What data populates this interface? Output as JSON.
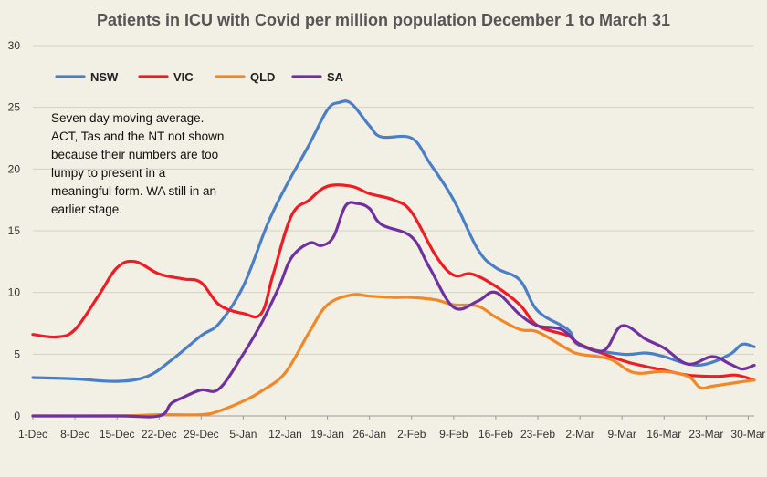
{
  "chart_data": {
    "type": "line",
    "title": "Patients in ICU with Covid per million population December 1  to March 31",
    "xlabel": "",
    "ylabel": "",
    "ylim": [
      0,
      30
    ],
    "yticks": [
      0,
      5,
      10,
      15,
      20,
      25,
      30
    ],
    "grid": "horizontal",
    "legend_position": "top-left",
    "x_start": "1-Dec",
    "x_end": "31-Mar",
    "x_tick_labels": [
      "1-Dec",
      "8-Dec",
      "15-Dec",
      "22-Dec",
      "29-Dec",
      "5-Jan",
      "12-Jan",
      "19-Jan",
      "26-Jan",
      "2-Feb",
      "9-Feb",
      "16-Feb",
      "23-Feb",
      "2-Mar",
      "9-Mar",
      "16-Mar",
      "23-Mar",
      "30-Mar"
    ],
    "annotation": [
      "Seven day moving average.",
      "ACT, Tas and the NT not shown",
      "because their numbers are too",
      "lumpy to present  in a",
      "meaningful form. WA still in an",
      "earlier stage."
    ],
    "series": [
      {
        "name": "NSW",
        "color": "#4a7fc8",
        "points": [
          [
            "1-Dec",
            3.1
          ],
          [
            "8-Dec",
            3.0
          ],
          [
            "15-Dec",
            2.8
          ],
          [
            "20-Dec",
            3.2
          ],
          [
            "24-Dec",
            4.5
          ],
          [
            "29-Dec",
            6.5
          ],
          [
            "1-Jan",
            7.5
          ],
          [
            "5-Jan",
            10.5
          ],
          [
            "9-Jan",
            15.5
          ],
          [
            "12-Jan",
            18.5
          ],
          [
            "16-Jan",
            22.0
          ],
          [
            "19-Jan",
            24.8
          ],
          [
            "21-Jan",
            25.4
          ],
          [
            "23-Jan",
            25.3
          ],
          [
            "26-Jan",
            23.5
          ],
          [
            "28-Jan",
            22.6
          ],
          [
            "2-Feb",
            22.5
          ],
          [
            "5-Feb",
            20.5
          ],
          [
            "9-Feb",
            17.5
          ],
          [
            "13-Feb",
            13.5
          ],
          [
            "16-Feb",
            12.0
          ],
          [
            "20-Feb",
            11.0
          ],
          [
            "23-Feb",
            8.5
          ],
          [
            "28-Feb",
            7.0
          ],
          [
            "2-Mar",
            5.7
          ],
          [
            "9-Mar",
            5.0
          ],
          [
            "13-Mar",
            5.1
          ],
          [
            "16-Mar",
            4.8
          ],
          [
            "20-Mar",
            4.2
          ],
          [
            "23-Mar",
            4.2
          ],
          [
            "27-Mar",
            5.0
          ],
          [
            "29-Mar",
            5.8
          ],
          [
            "31-Mar",
            5.6
          ]
        ]
      },
      {
        "name": "VIC",
        "color": "#ee1c24",
        "points": [
          [
            "1-Dec",
            6.6
          ],
          [
            "5-Dec",
            6.4
          ],
          [
            "8-Dec",
            7.0
          ],
          [
            "12-Dec",
            9.8
          ],
          [
            "15-Dec",
            12.0
          ],
          [
            "18-Dec",
            12.5
          ],
          [
            "22-Dec",
            11.5
          ],
          [
            "26-Dec",
            11.1
          ],
          [
            "29-Dec",
            10.8
          ],
          [
            "1-Jan",
            9.0
          ],
          [
            "5-Jan",
            8.3
          ],
          [
            "8-Jan",
            8.3
          ],
          [
            "10-Jan",
            11.5
          ],
          [
            "13-Jan",
            16.2
          ],
          [
            "16-Jan",
            17.5
          ],
          [
            "19-Jan",
            18.6
          ],
          [
            "23-Jan",
            18.6
          ],
          [
            "26-Jan",
            18.0
          ],
          [
            "30-Jan",
            17.5
          ],
          [
            "2-Feb",
            16.5
          ],
          [
            "6-Feb",
            13.0
          ],
          [
            "9-Feb",
            11.4
          ],
          [
            "12-Feb",
            11.5
          ],
          [
            "16-Feb",
            10.5
          ],
          [
            "20-Feb",
            9.0
          ],
          [
            "23-Feb",
            7.3
          ],
          [
            "28-Feb",
            6.5
          ],
          [
            "2-Mar",
            5.8
          ],
          [
            "9-Mar",
            4.5
          ],
          [
            "13-Mar",
            4.0
          ],
          [
            "16-Mar",
            3.7
          ],
          [
            "20-Mar",
            3.3
          ],
          [
            "25-Mar",
            3.2
          ],
          [
            "28-Mar",
            3.3
          ],
          [
            "31-Mar",
            2.9
          ]
        ]
      },
      {
        "name": "QLD",
        "color": "#f0882a",
        "points": [
          [
            "1-Dec",
            0.0
          ],
          [
            "15-Dec",
            0.0
          ],
          [
            "22-Dec",
            0.1
          ],
          [
            "29-Dec",
            0.1
          ],
          [
            "1-Jan",
            0.4
          ],
          [
            "5-Jan",
            1.2
          ],
          [
            "8-Jan",
            2.0
          ],
          [
            "12-Jan",
            3.5
          ],
          [
            "16-Jan",
            6.8
          ],
          [
            "19-Jan",
            9.0
          ],
          [
            "23-Jan",
            9.8
          ],
          [
            "26-Jan",
            9.7
          ],
          [
            "30-Jan",
            9.6
          ],
          [
            "2-Feb",
            9.6
          ],
          [
            "6-Feb",
            9.4
          ],
          [
            "9-Feb",
            9.0
          ],
          [
            "13-Feb",
            8.9
          ],
          [
            "16-Feb",
            8.0
          ],
          [
            "20-Feb",
            7.0
          ],
          [
            "23-Feb",
            6.8
          ],
          [
            "28-Feb",
            5.4
          ],
          [
            "2-Mar",
            5.0
          ],
          [
            "7-Mar",
            4.6
          ],
          [
            "11-Mar",
            3.5
          ],
          [
            "16-Mar",
            3.6
          ],
          [
            "20-Mar",
            3.2
          ],
          [
            "22-Mar",
            2.3
          ],
          [
            "24-Mar",
            2.4
          ],
          [
            "28-Mar",
            2.7
          ],
          [
            "31-Mar",
            2.9
          ]
        ]
      },
      {
        "name": "SA",
        "color": "#7030a0",
        "points": [
          [
            "1-Dec",
            0.0
          ],
          [
            "15-Dec",
            0.0
          ],
          [
            "22-Dec",
            0.0
          ],
          [
            "24-Dec",
            1.0
          ],
          [
            "26-Dec",
            1.5
          ],
          [
            "29-Dec",
            2.1
          ],
          [
            "1-Jan",
            2.2
          ],
          [
            "5-Jan",
            5.0
          ],
          [
            "8-Jan",
            7.5
          ],
          [
            "11-Jan",
            10.5
          ],
          [
            "13-Jan",
            12.8
          ],
          [
            "16-Jan",
            14.0
          ],
          [
            "18-Jan",
            13.8
          ],
          [
            "20-Jan",
            14.5
          ],
          [
            "22-Jan",
            17.0
          ],
          [
            "24-Jan",
            17.2
          ],
          [
            "26-Jan",
            16.8
          ],
          [
            "28-Jan",
            15.5
          ],
          [
            "2-Feb",
            14.5
          ],
          [
            "5-Feb",
            12.0
          ],
          [
            "9-Feb",
            8.8
          ],
          [
            "13-Feb",
            9.3
          ],
          [
            "16-Feb",
            10.0
          ],
          [
            "20-Feb",
            8.2
          ],
          [
            "23-Feb",
            7.3
          ],
          [
            "27-Feb",
            7.0
          ],
          [
            "2-Mar",
            5.8
          ],
          [
            "6-Mar",
            5.3
          ],
          [
            "9-Mar",
            7.3
          ],
          [
            "13-Mar",
            6.2
          ],
          [
            "16-Mar",
            5.5
          ],
          [
            "20-Mar",
            4.2
          ],
          [
            "24-Mar",
            4.8
          ],
          [
            "27-Mar",
            4.2
          ],
          [
            "29-Mar",
            3.8
          ],
          [
            "31-Mar",
            4.1
          ]
        ]
      }
    ]
  }
}
